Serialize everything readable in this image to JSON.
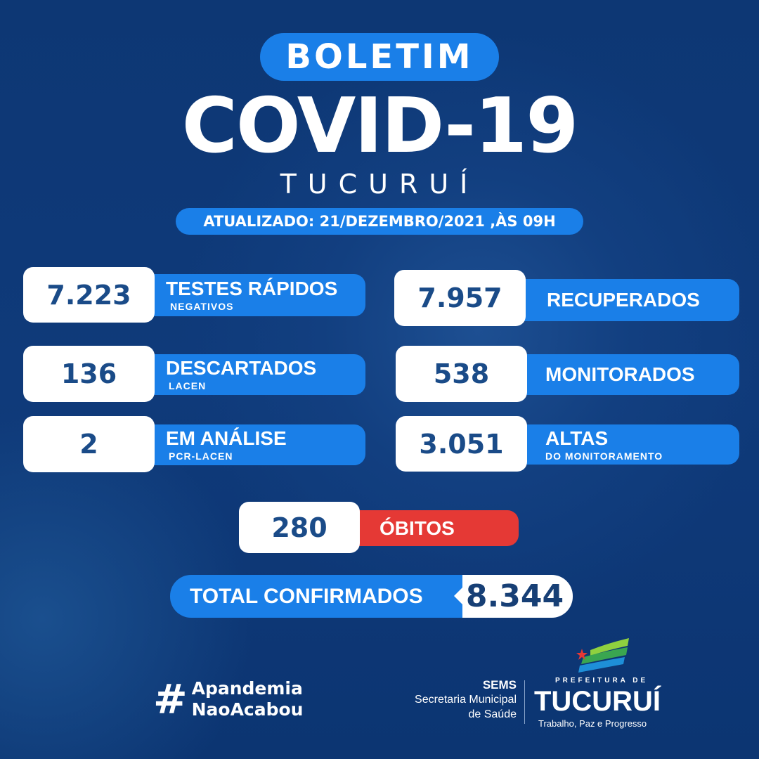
{
  "header": {
    "badge": "BOLETIM",
    "title": "COVID-19",
    "city": "TUCURUÍ",
    "updated": "ATUALIZADO: 21/DEZEMBRO/2021 ,ÀS 09H"
  },
  "stats": {
    "testes": {
      "value": "7.223",
      "label": "TESTES RÁPIDOS",
      "sub": "NEGATIVOS"
    },
    "descartados": {
      "value": "136",
      "label": "DESCARTADOS",
      "sub": "LACEN"
    },
    "analise": {
      "value": "2",
      "label": "EM ANÁLISE",
      "sub": "PCR-LACEN"
    },
    "recuperados": {
      "value": "7.957",
      "label": "RECUPERADOS"
    },
    "monitorados": {
      "value": "538",
      "label": "MONITORADOS"
    },
    "altas": {
      "value": "3.051",
      "label": "ALTAS",
      "sub": "DO MONITORAMENTO"
    },
    "obitos": {
      "value": "280",
      "label": "ÓBITOS"
    },
    "total": {
      "label": "TOTAL CONFIRMADOS",
      "value": "8.344"
    }
  },
  "footer": {
    "hashtag_symbol": "#",
    "hashtag_line1": "Apandemia",
    "hashtag_line2": "NaoAcabou",
    "sems": "SEMS",
    "sems_line1": "Secretaria Municipal",
    "sems_line2": "de Saúde",
    "prefeitura": "PREFEITURA DE",
    "city": "TUCURUÍ",
    "motto": "Trabalho, Paz e Progresso"
  },
  "colors": {
    "background": "#0f3a7a",
    "accent": "#1a7fe8",
    "number": "#1a4b88",
    "death": "#e53935"
  }
}
